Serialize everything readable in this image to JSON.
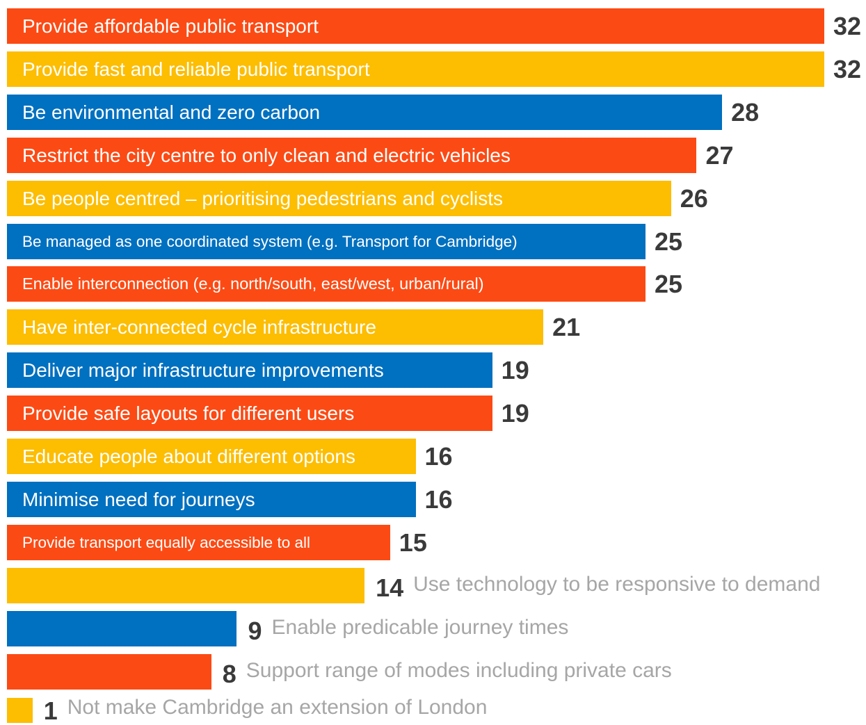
{
  "chart_data": {
    "type": "bar",
    "orientation": "horizontal",
    "palette": [
      "#fc4a14",
      "#fdbd00",
      "#0070c0"
    ],
    "label_color_inside": "#ffffff",
    "label_color_outside": "#a6a6a6",
    "value_color": "#3a3a3a",
    "xlim": [
      0,
      32
    ],
    "grid": false,
    "bars": [
      {
        "label": "Provide affordable public transport",
        "value": 32,
        "color": "#fc4a14"
      },
      {
        "label": "Provide fast and reliable public transport",
        "value": 32,
        "color": "#fdbd00"
      },
      {
        "label": "Be environmental and zero carbon",
        "value": 28,
        "color": "#0070c0"
      },
      {
        "label": "Restrict the city centre to only clean and electric vehicles",
        "value": 27,
        "color": "#fc4a14"
      },
      {
        "label": "Be people centred – prioritising pedestrians and cyclists",
        "value": 26,
        "color": "#fdbd00"
      },
      {
        "label": "Be managed as one coordinated system (e.g. Transport for Cambridge)",
        "value": 25,
        "color": "#0070c0"
      },
      {
        "label": "Enable interconnection (e.g. north/south, east/west, urban/rural)",
        "value": 25,
        "color": "#fc4a14"
      },
      {
        "label": "Have inter-connected cycle infrastructure",
        "value": 21,
        "color": "#fdbd00"
      },
      {
        "label": "Deliver major infrastructure improvements",
        "value": 19,
        "color": "#0070c0"
      },
      {
        "label": "Provide safe layouts for different users",
        "value": 19,
        "color": "#fc4a14"
      },
      {
        "label": "Educate people about different options",
        "value": 16,
        "color": "#fdbd00"
      },
      {
        "label": "Minimise need for journeys",
        "value": 16,
        "color": "#0070c0"
      },
      {
        "label": "Provide transport equally accessible to all",
        "value": 15,
        "color": "#fc4a14"
      },
      {
        "label": "Use technology to be responsive to demand",
        "value": 14,
        "color": "#fdbd00"
      },
      {
        "label": "Enable predicable journey times",
        "value": 9,
        "color": "#0070c0"
      },
      {
        "label": "Support range of modes including private cars",
        "value": 8,
        "color": "#fc4a14"
      },
      {
        "label": "Not make Cambridge an extension of London",
        "value": 1,
        "color": "#fdbd00"
      }
    ]
  }
}
